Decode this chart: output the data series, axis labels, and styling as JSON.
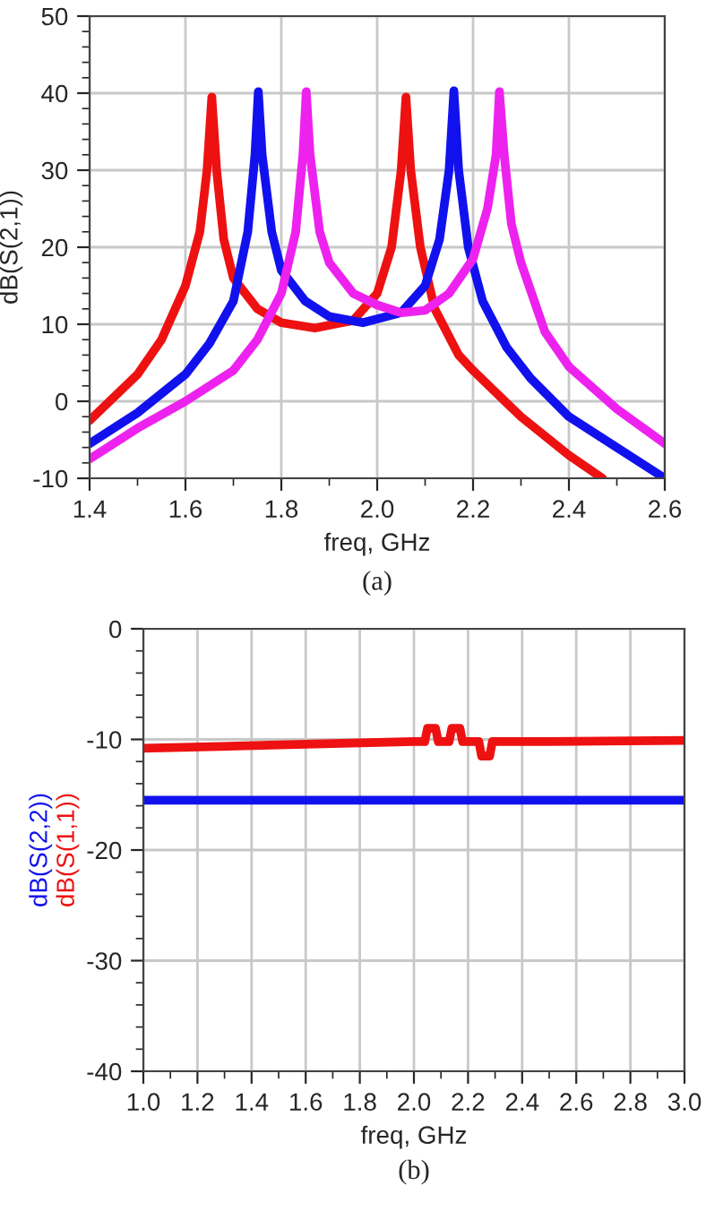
{
  "chart_data": [
    {
      "type": "line",
      "xlabel": "freq, GHz",
      "ylabel": "dB(S(2,1))",
      "xlim": [
        1.4,
        2.6
      ],
      "ylim": [
        -10,
        50
      ],
      "xticks": [
        1.4,
        1.6,
        1.8,
        {
          "value": 2.0,
          "label": "2.0"
        },
        2.2,
        2.4,
        2.6
      ],
      "yticks": [
        -10,
        0,
        10,
        20,
        30,
        40,
        50
      ],
      "grid": true,
      "legend": false,
      "annotations": [
        "(a)"
      ],
      "series": [
        {
          "color": "#ee1111",
          "x": [
            1.4,
            1.45,
            1.5,
            1.55,
            1.6,
            1.63,
            1.645,
            1.655,
            1.665,
            1.68,
            1.7,
            1.75,
            1.8,
            1.87,
            1.95,
            2.0,
            2.03,
            2.05,
            2.06,
            2.07,
            2.09,
            2.12,
            2.17,
            2.2,
            2.25,
            2.3,
            2.35,
            2.4,
            2.47
          ],
          "values": [
            -2.5,
            0.5,
            3.5,
            8,
            15,
            22,
            30,
            39.5,
            30,
            21,
            16,
            12,
            10.2,
            9.5,
            10.5,
            14,
            20,
            30,
            39.5,
            30,
            20,
            12,
            6,
            4,
            1,
            -2,
            -4.5,
            -7,
            -10
          ]
        },
        {
          "color": "#1111ee",
          "x": [
            1.4,
            1.5,
            1.6,
            1.65,
            1.7,
            1.73,
            1.745,
            1.752,
            1.76,
            1.78,
            1.8,
            1.85,
            1.9,
            1.97,
            2.05,
            2.1,
            2.13,
            2.15,
            2.16,
            2.17,
            2.19,
            2.22,
            2.27,
            2.32,
            2.4,
            2.5,
            2.6
          ],
          "values": [
            -5.5,
            -1.5,
            3.5,
            7.5,
            13,
            22,
            32,
            40.2,
            32,
            22,
            17,
            13,
            11,
            10.2,
            11.5,
            15,
            21,
            30,
            40.3,
            30,
            20,
            13,
            7,
            3,
            -2,
            -6,
            -10
          ]
        },
        {
          "color": "#ee22ee",
          "x": [
            1.4,
            1.5,
            1.6,
            1.7,
            1.75,
            1.8,
            1.83,
            1.845,
            1.852,
            1.86,
            1.88,
            1.9,
            1.95,
            2.0,
            2.05,
            2.1,
            2.15,
            2.2,
            2.23,
            2.248,
            2.255,
            2.265,
            2.28,
            2.3,
            2.35,
            2.4,
            2.5,
            2.6
          ],
          "values": [
            -7.5,
            -3.5,
            0,
            4,
            8,
            14,
            22,
            32,
            40.2,
            32,
            22,
            18,
            14,
            12.5,
            11.5,
            11.8,
            14,
            18.5,
            25,
            32,
            40.2,
            32,
            23,
            18,
            9,
            4.5,
            -1,
            -5.5
          ]
        }
      ]
    },
    {
      "type": "line",
      "xlabel": "freq, GHz",
      "xlim": [
        1.0,
        3.0
      ],
      "ylim": [
        -40,
        0
      ],
      "xticks": [
        {
          "value": 1.0,
          "label": "1.0"
        },
        1.2,
        1.4,
        1.6,
        1.8,
        {
          "value": 2.0,
          "label": "2.0"
        },
        2.2,
        2.4,
        2.6,
        2.8,
        {
          "value": 3.0,
          "label": "3.0"
        }
      ],
      "yticks": [
        -40,
        -30,
        -20,
        -10,
        0
      ],
      "grid": true,
      "legend": false,
      "annotations": [
        "(b)"
      ],
      "series": [
        {
          "name": "dB(S(2,2))",
          "color": "#1111ee",
          "x": [
            1.0,
            3.0
          ],
          "values": [
            -15.5,
            -15.5
          ]
        },
        {
          "name": "dB(S(1,1))",
          "color": "#ee1111",
          "x": [
            1.0,
            1.5,
            2.0,
            2.04,
            2.05,
            2.08,
            2.09,
            2.13,
            2.14,
            2.17,
            2.18,
            2.24,
            2.25,
            2.28,
            2.29,
            2.5,
            3.0
          ],
          "values": [
            -10.8,
            -10.5,
            -10.2,
            -10.2,
            -9,
            -9,
            -10.2,
            -10.2,
            -9,
            -9,
            -10.2,
            -10.2,
            -11.5,
            -11.5,
            -10.2,
            -10.2,
            -10.1
          ]
        }
      ]
    }
  ]
}
